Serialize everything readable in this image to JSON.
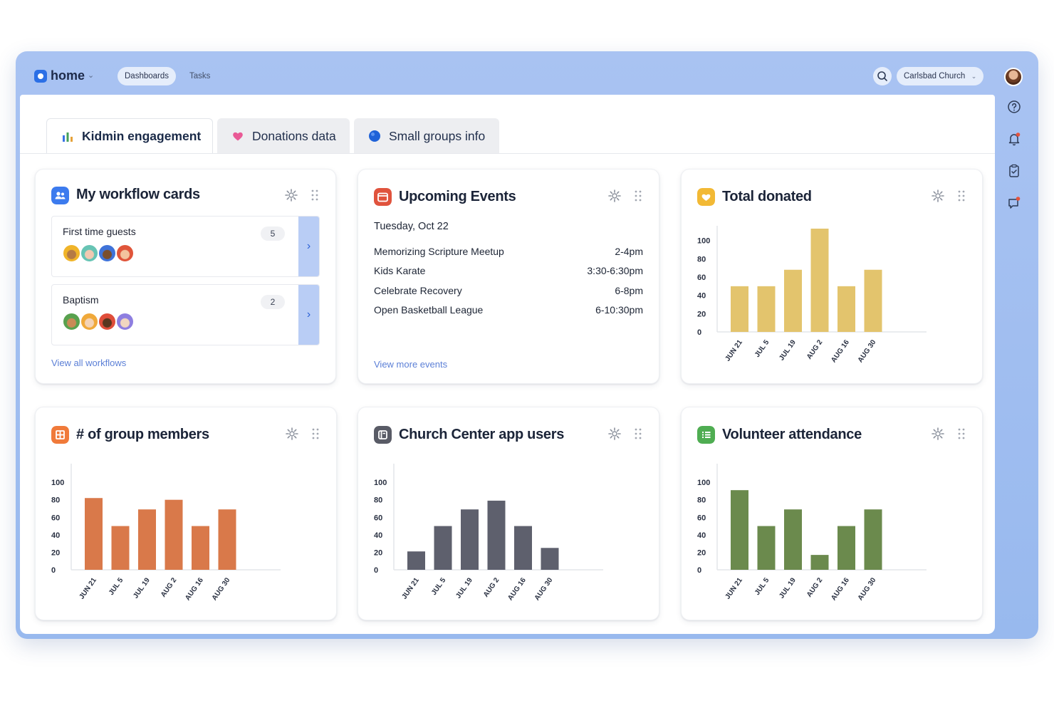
{
  "topbar": {
    "app_name": "home",
    "nav": [
      "Dashboards",
      "Tasks"
    ],
    "organization": "Carlsbad Church"
  },
  "tabs": [
    {
      "label": "Kidmin engagement",
      "icon": "bar-chart-icon",
      "active": true
    },
    {
      "label": "Donations data",
      "icon": "heart-icon",
      "active": false
    },
    {
      "label": "Small groups info",
      "icon": "blue-circle-icon",
      "active": false
    }
  ],
  "workflow": {
    "title": "My workflow cards",
    "items": [
      {
        "label": "First time guests",
        "count": "5"
      },
      {
        "label": "Baptism",
        "count": "2"
      }
    ],
    "link": "View all workflows"
  },
  "events": {
    "title": "Upcoming Events",
    "date": "Tuesday, Oct 22",
    "items": [
      {
        "name": "Memorizing Scripture Meetup",
        "time": "2-4pm"
      },
      {
        "name": "Kids Karate",
        "time": "3:30-6:30pm"
      },
      {
        "name": "Celebrate Recovery",
        "time": "6-8pm"
      },
      {
        "name": "Open Basketball League",
        "time": "6-10:30pm"
      }
    ],
    "link": "View more events"
  },
  "chart_data": [
    {
      "type": "bar",
      "title": "Total donated",
      "color": "#e3c46d",
      "categories": [
        "JUN 21",
        "JUL 5",
        "JUL 19",
        "AUG 2",
        "AUG 16",
        "AUG 30"
      ],
      "values": [
        50,
        50,
        68,
        113,
        50,
        68
      ],
      "yticks": [
        0,
        20,
        40,
        60,
        80,
        100
      ],
      "ylim": [
        0,
        113
      ]
    },
    {
      "type": "bar",
      "title": "# of group members",
      "color": "#d9794a",
      "categories": [
        "JUN 21",
        "JUL 5",
        "JUL 19",
        "AUG 2",
        "AUG 16",
        "AUG 30"
      ],
      "values": [
        82,
        50,
        69,
        80,
        50,
        69
      ],
      "yticks": [
        0,
        20,
        40,
        60,
        80,
        100
      ],
      "ylim": [
        0,
        118
      ]
    },
    {
      "type": "bar",
      "title": "Church Center app users",
      "color": "#5e606d",
      "categories": [
        "JUN 21",
        "JUL 5",
        "JUL 19",
        "AUG 2",
        "AUG 16",
        "AUG 30"
      ],
      "values": [
        21,
        50,
        69,
        79,
        50,
        25
      ],
      "yticks": [
        0,
        20,
        40,
        60,
        80,
        100
      ],
      "ylim": [
        0,
        118
      ]
    },
    {
      "type": "bar",
      "title": "Volunteer attendance",
      "color": "#6b8a4d",
      "categories": [
        "JUN 21",
        "JUL 5",
        "JUL 19",
        "AUG 2",
        "AUG 16",
        "AUG 30"
      ],
      "values": [
        91,
        50,
        69,
        17,
        50,
        69
      ],
      "yticks": [
        0,
        20,
        40,
        60,
        80,
        100
      ],
      "ylim": [
        0,
        118
      ]
    }
  ],
  "colors": {
    "accent": "#2b6fe6",
    "frame": "#a9c3f2",
    "link": "#5b7fd6"
  }
}
